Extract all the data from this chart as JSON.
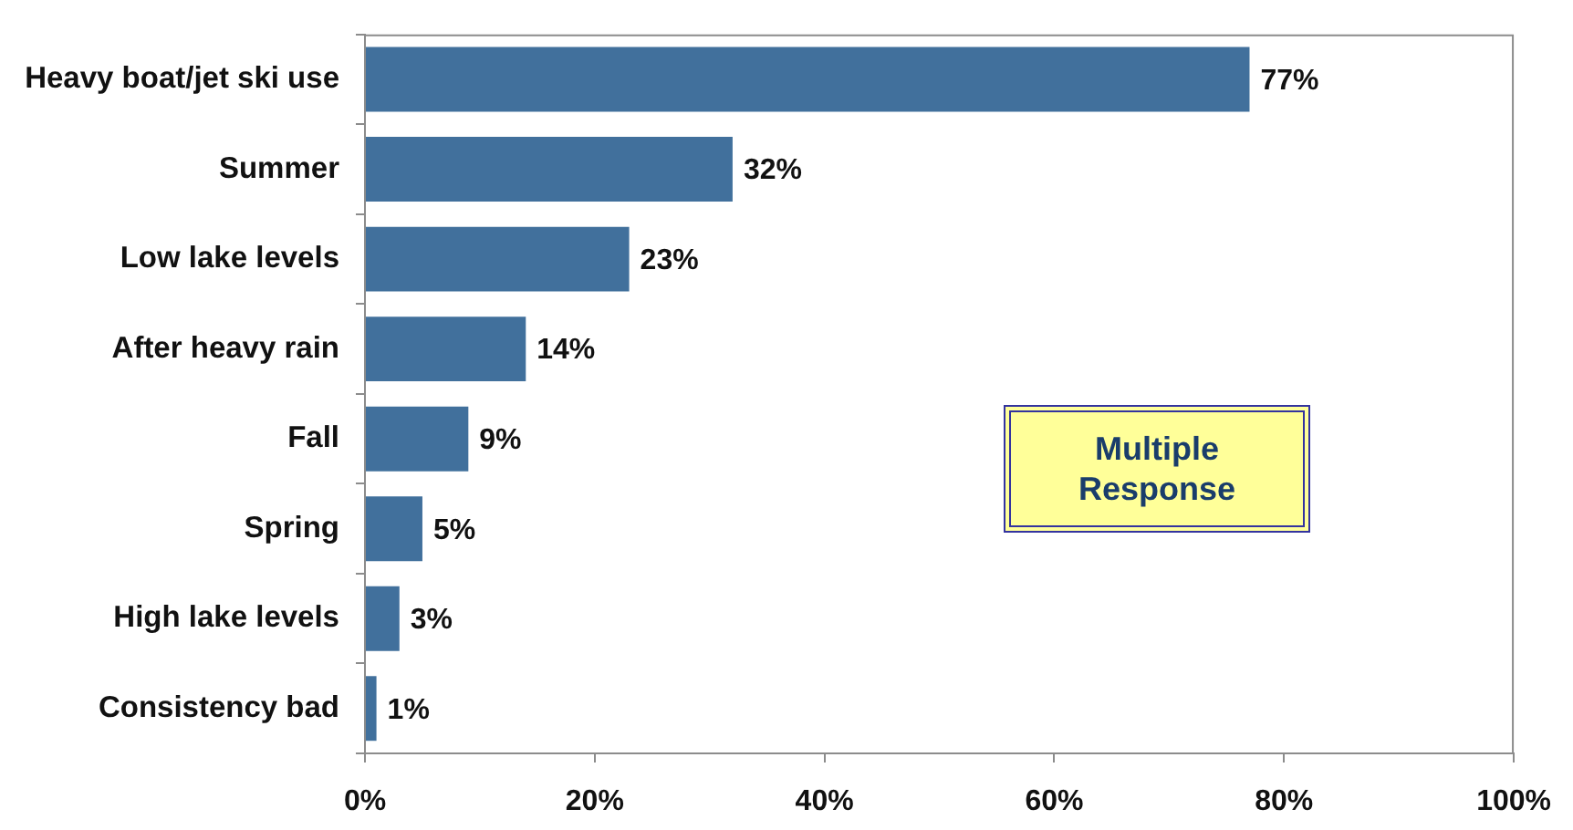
{
  "chart_data": {
    "type": "bar",
    "orientation": "horizontal",
    "categories": [
      "Heavy boat/jet ski use",
      "Summer",
      "Low lake levels",
      "After heavy rain",
      "Fall",
      "Spring",
      "High lake levels",
      "Consistency bad"
    ],
    "values": [
      77,
      32,
      23,
      14,
      9,
      5,
      3,
      1
    ],
    "value_labels": [
      "77%",
      "32%",
      "23%",
      "14%",
      "9%",
      "5%",
      "3%",
      "1%"
    ],
    "color": "#41709c",
    "xlim": [
      0,
      100
    ],
    "xticks": [
      {
        "value": 0,
        "label": "0%"
      },
      {
        "value": 20,
        "label": "20%"
      },
      {
        "value": 40,
        "label": "40%"
      },
      {
        "value": 60,
        "label": "60%"
      },
      {
        "value": 80,
        "label": "80%"
      },
      {
        "value": 100,
        "label": "100%"
      }
    ],
    "annotations": [
      "Multiple Response"
    ]
  }
}
